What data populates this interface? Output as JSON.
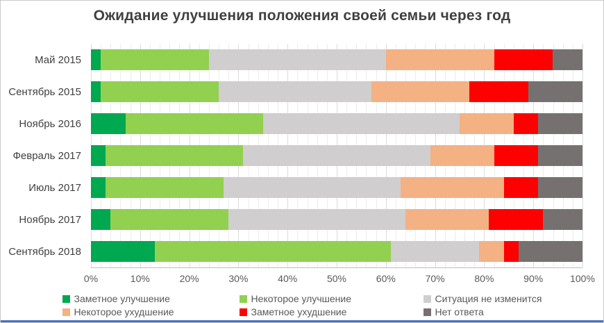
{
  "title": "Ожидание улучшения положения своей семьи через год",
  "colors": {
    "title_text": "#404040",
    "axis_text": "#595959",
    "gridline": "#ececec",
    "axis_line": "#bfbfbf",
    "bottom_accent": "#4472C4"
  },
  "chart_data": {
    "type": "bar",
    "orientation": "horizontal",
    "stacked": true,
    "title": "Ожидание улучшения положения своей семьи через год",
    "categories": [
      "Май 2015",
      "Сентябрь 2015",
      "Ноябрь 2016",
      "Февраль 2017",
      "Июль 2017",
      "Ноябрь 2017",
      "Сентябрь 2018"
    ],
    "series": [
      {
        "name": "Заметное улучшение",
        "color": "#00A84F",
        "values": [
          2,
          2,
          7,
          3,
          3,
          4,
          13
        ]
      },
      {
        "name": "Некоторое улучшение",
        "color": "#92D050",
        "values": [
          22,
          24,
          28,
          28,
          24,
          24,
          48
        ]
      },
      {
        "name": "Ситуация не изменится",
        "color": "#D0CECE",
        "values": [
          36,
          31,
          40,
          38,
          36,
          36,
          18
        ]
      },
      {
        "name": "Некоторое ухудшение",
        "color": "#F4B183",
        "values": [
          22,
          20,
          11,
          13,
          21,
          17,
          5
        ]
      },
      {
        "name": "Заметное ухудшение",
        "color": "#FF0000",
        "values": [
          12,
          12,
          5,
          9,
          7,
          11,
          3
        ]
      },
      {
        "name": "Нет ответа",
        "color": "#767171",
        "values": [
          6,
          11,
          9,
          9,
          9,
          8,
          13
        ]
      }
    ],
    "x_axis": {
      "min": 0,
      "max": 100,
      "unit": "%",
      "ticks": [
        "0%",
        "10%",
        "20%",
        "30%",
        "40%",
        "50%",
        "60%",
        "70%",
        "80%",
        "90%",
        "100%"
      ],
      "minor_grid_step": 2,
      "major_grid_step": 10,
      "grid": true
    },
    "legend_position": "bottom"
  }
}
